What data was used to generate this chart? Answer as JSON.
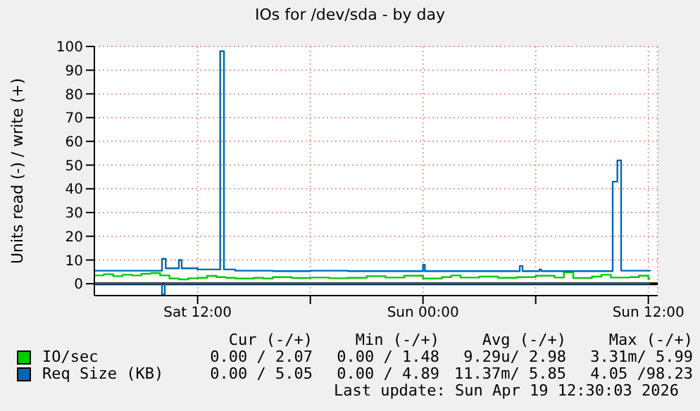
{
  "chart_data": {
    "type": "step",
    "title": "IOs for /dev/sda - by day",
    "ylabel": "Units read (-) / write (+)",
    "xlim": [
      "2026-04-18T06:30",
      "2026-04-19T12:30"
    ],
    "xticks": [
      {
        "value": "2026-04-18T12:00",
        "label": "Sat 12:00"
      },
      {
        "value": "2026-04-18T18:00",
        "label": null
      },
      {
        "value": "2026-04-19T00:00",
        "label": "Sun 00:00"
      },
      {
        "value": "2026-04-19T06:00",
        "label": null
      },
      {
        "value": "2026-04-19T12:00",
        "label": "Sun 12:00"
      }
    ],
    "ylim": [
      -5,
      100
    ],
    "yticks": [
      0,
      10,
      20,
      30,
      40,
      50,
      60,
      70,
      80,
      90,
      100
    ],
    "grid": true,
    "legend": "bottom left",
    "ref_lines": [
      {
        "axis": "y",
        "value": 0,
        "color": "#000000"
      }
    ],
    "series": [
      {
        "name": "IO/sec",
        "color": "#00cc00",
        "x": [
          "2026-04-18T06:30",
          "2026-04-18T07:00",
          "2026-04-18T07:30",
          "2026-04-18T08:00",
          "2026-04-18T08:30",
          "2026-04-18T09:00",
          "2026-04-18T09:30",
          "2026-04-18T10:00",
          "2026-04-18T10:30",
          "2026-04-18T11:00",
          "2026-04-18T11:30",
          "2026-04-18T12:00",
          "2026-04-18T12:30",
          "2026-04-18T13:00",
          "2026-04-18T13:30",
          "2026-04-18T14:00",
          "2026-04-18T15:00",
          "2026-04-18T15:30",
          "2026-04-18T16:00",
          "2026-04-18T17:00",
          "2026-04-18T18:00",
          "2026-04-18T19:00",
          "2026-04-18T20:00",
          "2026-04-18T21:00",
          "2026-04-18T22:00",
          "2026-04-18T23:00",
          "2026-04-19T00:00",
          "2026-04-19T01:00",
          "2026-04-19T01:30",
          "2026-04-19T02:00",
          "2026-04-19T03:00",
          "2026-04-19T04:00",
          "2026-04-19T05:00",
          "2026-04-19T06:00",
          "2026-04-19T07:00",
          "2026-04-19T07:30",
          "2026-04-19T08:00",
          "2026-04-19T09:00",
          "2026-04-19T09:30",
          "2026-04-19T10:00",
          "2026-04-19T11:00",
          "2026-04-19T11:30",
          "2026-04-19T12:00",
          "2026-04-19T12:06"
        ],
        "values": [
          3.5,
          4,
          3.2,
          3.8,
          3.5,
          4.2,
          4.5,
          3.5,
          2.2,
          1.8,
          2.3,
          2.5,
          3.3,
          2.8,
          2.5,
          2.2,
          2.5,
          2.2,
          2.8,
          2.4,
          2.6,
          2.3,
          2.5,
          3.2,
          2.6,
          3.4,
          2.2,
          2.8,
          3.5,
          2.6,
          3,
          2.5,
          2.8,
          3.4,
          2.6,
          4.8,
          2.4,
          3,
          3.8,
          2.6,
          2.8,
          3.4,
          2.1,
          2.1
        ]
      },
      {
        "name": "Req Size (KB)",
        "color": "#0066b3",
        "x": [
          "2026-04-18T06:30",
          "2026-04-18T08:00",
          "2026-04-18T10:00",
          "2026-04-18T10:06",
          "2026-04-18T10:18",
          "2026-04-18T10:54",
          "2026-04-18T11:00",
          "2026-04-18T11:09",
          "2026-04-18T12:00",
          "2026-04-18T13:06",
          "2026-04-18T13:12",
          "2026-04-18T13:24",
          "2026-04-18T14:00",
          "2026-04-18T16:00",
          "2026-04-18T18:00",
          "2026-04-18T20:00",
          "2026-04-18T22:00",
          "2026-04-18T23:54",
          "2026-04-19T00:00",
          "2026-04-19T00:06",
          "2026-04-19T02:00",
          "2026-04-19T05:06",
          "2026-04-19T05:09",
          "2026-04-19T05:18",
          "2026-04-19T06:12",
          "2026-04-19T06:18",
          "2026-04-19T08:00",
          "2026-04-19T10:00",
          "2026-04-19T10:06",
          "2026-04-19T10:21",
          "2026-04-19T10:33",
          "2026-04-19T12:06"
        ],
        "values": [
          5.5,
          5.5,
          5.5,
          10.5,
          6.5,
          6.5,
          10,
          6.5,
          6,
          6,
          98,
          6,
          5.5,
          5.3,
          5.5,
          5.3,
          5.3,
          5.3,
          8,
          5.3,
          5.3,
          5.3,
          7.5,
          5.3,
          6,
          5.3,
          5.3,
          5.3,
          43,
          52,
          5.5,
          5.3
        ]
      },
      {
        "color": "#0066b3",
        "x": [
          "2026-04-18T06:30",
          "2026-04-18T10:00",
          "2026-04-18T10:06",
          "2026-04-18T10:15",
          "2026-04-19T12:06"
        ],
        "values": [
          0,
          0,
          -4.5,
          0,
          0
        ]
      }
    ],
    "annotations": [
      "Cur (-/+)",
      "Min (-/+)",
      "Avg (-/+)",
      "Max (-/+)",
      "0.00 / 2.07",
      "0.00 / 1.48",
      "9.29u/ 2.98",
      "3.31m/ 5.99",
      "0.00 / 5.05",
      "0.00 / 4.89",
      "11.37m/ 5.85",
      "4.05 /98.23",
      "Last update: Sun Apr 19 12:30:03 2026"
    ]
  }
}
